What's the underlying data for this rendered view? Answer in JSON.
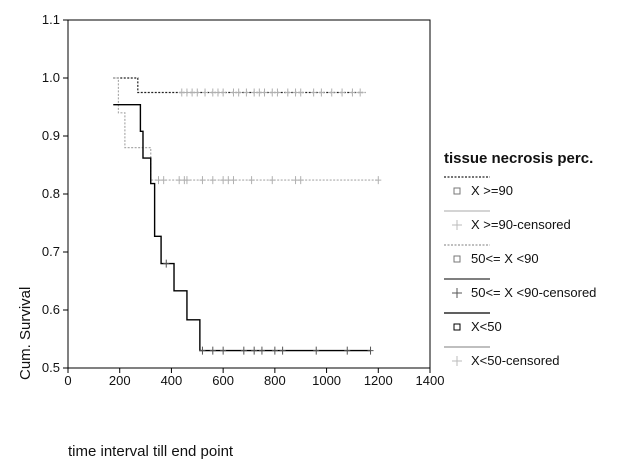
{
  "chart_data": {
    "type": "line",
    "title": "",
    "xlabel": "time interval till end point",
    "ylabel": "Cum. Survival",
    "xlim": [
      0,
      1400
    ],
    "ylim": [
      0.5,
      1.1
    ],
    "xticks": [
      "0",
      "200",
      "400",
      "600",
      "800",
      "1000",
      "1200",
      "1400"
    ],
    "yticks": [
      "0.5",
      "0.6",
      "0.7",
      "0.8",
      "0.9",
      "1.0",
      "1.1"
    ],
    "legend_title": "tissue necrosis perc.",
    "legend_position": "right",
    "legend": [
      "X >=90",
      "X >=90-censored",
      "50<= X <90",
      "50<= X <90-censored",
      "X<50",
      "X<50-censored"
    ],
    "series": [
      {
        "name": "X >=90",
        "color": "#222222",
        "dash": "dotted",
        "steps": [
          [
            175,
            1.0
          ],
          [
            270,
            0.975
          ],
          [
            1150,
            0.975
          ]
        ],
        "censored": [
          440,
          460,
          480,
          500,
          530,
          560,
          580,
          600,
          640,
          660,
          690,
          720,
          740,
          760,
          790,
          810,
          850,
          880,
          900,
          950,
          980,
          1020,
          1060,
          1100,
          1130
        ]
      },
      {
        "name": "50<= X <90",
        "color": "#aaaaaa",
        "dash": "dotted",
        "steps": [
          [
            175,
            1.0
          ],
          [
            195,
            0.94
          ],
          [
            220,
            0.88
          ],
          [
            290,
            0.88
          ],
          [
            320,
            0.824
          ],
          [
            1200,
            0.824
          ]
        ],
        "censored": [
          350,
          370,
          430,
          450,
          460,
          520,
          560,
          600,
          620,
          640,
          710,
          790,
          880,
          900,
          1200
        ]
      },
      {
        "name": "X<50",
        "color": "#000000",
        "dash": "solid",
        "steps": [
          [
            175,
            0.954
          ],
          [
            280,
            0.908
          ],
          [
            290,
            0.862
          ],
          [
            320,
            0.818
          ],
          [
            335,
            0.727
          ],
          [
            360,
            0.68
          ],
          [
            410,
            0.633
          ],
          [
            460,
            0.583
          ],
          [
            510,
            0.53
          ],
          [
            1170,
            0.53
          ]
        ],
        "censored": [
          380,
          520,
          560,
          600,
          680,
          720,
          750,
          800,
          830,
          960,
          1080,
          1170
        ]
      }
    ]
  }
}
